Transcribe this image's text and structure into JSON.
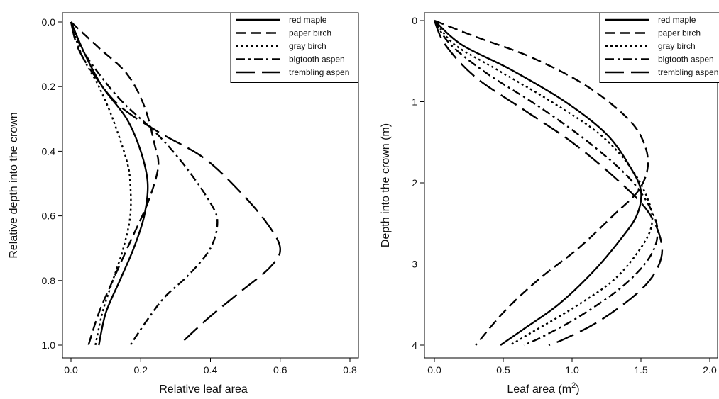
{
  "chart_data": [
    {
      "type": "line",
      "xlabel": "Relative leaf area",
      "ylabel": "Relative depth into the crown",
      "xlim": [
        0,
        0.8
      ],
      "ylim": [
        0,
        1.0
      ],
      "y_inverted": true,
      "xticks": [
        "0.0",
        "0.2",
        "0.4",
        "0.6",
        "0.8"
      ],
      "yticks": [
        "0.0",
        "0.2",
        "0.4",
        "0.6",
        "0.8",
        "1.0"
      ],
      "legend_position": "top-right",
      "series": [
        {
          "name": "red maple",
          "dash": "solid",
          "points": [
            [
              0,
              0
            ],
            [
              0.04,
              0.1
            ],
            [
              0.09,
              0.2
            ],
            [
              0.16,
              0.3
            ],
            [
              0.2,
              0.4
            ],
            [
              0.22,
              0.5
            ],
            [
              0.21,
              0.6
            ],
            [
              0.18,
              0.7
            ],
            [
              0.14,
              0.8
            ],
            [
              0.1,
              0.9
            ],
            [
              0.08,
              1.0
            ]
          ]
        },
        {
          "name": "paper birch",
          "dash": "dash",
          "points": [
            [
              0,
              0
            ],
            [
              0.08,
              0.08
            ],
            [
              0.16,
              0.16
            ],
            [
              0.21,
              0.26
            ],
            [
              0.24,
              0.38
            ],
            [
              0.25,
              0.45
            ],
            [
              0.22,
              0.56
            ],
            [
              0.17,
              0.68
            ],
            [
              0.12,
              0.8
            ],
            [
              0.08,
              0.9
            ],
            [
              0.05,
              1.0
            ]
          ]
        },
        {
          "name": "gray birch",
          "dash": "dot",
          "points": [
            [
              0,
              0
            ],
            [
              0.03,
              0.1
            ],
            [
              0.08,
              0.2
            ],
            [
              0.12,
              0.3
            ],
            [
              0.16,
              0.43
            ],
            [
              0.17,
              0.5
            ],
            [
              0.17,
              0.6
            ],
            [
              0.15,
              0.7
            ],
            [
              0.12,
              0.8
            ],
            [
              0.09,
              0.9
            ],
            [
              0.07,
              1.0
            ]
          ]
        },
        {
          "name": "bigtooth aspen",
          "dash": "dashdot",
          "points": [
            [
              0,
              0
            ],
            [
              0.03,
              0.08
            ],
            [
              0.08,
              0.16
            ],
            [
              0.15,
              0.25
            ],
            [
              0.25,
              0.35
            ],
            [
              0.33,
              0.45
            ],
            [
              0.4,
              0.56
            ],
            [
              0.42,
              0.62
            ],
            [
              0.4,
              0.7
            ],
            [
              0.34,
              0.78
            ],
            [
              0.27,
              0.85
            ],
            [
              0.22,
              0.92
            ],
            [
              0.17,
              1.0
            ]
          ]
        },
        {
          "name": "trembling aspen",
          "dash": "longdash",
          "points": [
            [
              0,
              0
            ],
            [
              0.02,
              0.08
            ],
            [
              0.07,
              0.17
            ],
            [
              0.14,
              0.26
            ],
            [
              0.25,
              0.34
            ],
            [
              0.38,
              0.42
            ],
            [
              0.48,
              0.52
            ],
            [
              0.56,
              0.62
            ],
            [
              0.6,
              0.7
            ],
            [
              0.57,
              0.76
            ],
            [
              0.48,
              0.84
            ],
            [
              0.39,
              0.92
            ],
            [
              0.31,
              1.0
            ]
          ]
        }
      ]
    },
    {
      "type": "line",
      "xlabel": "Leaf area (m",
      "xlabel_superscript": "2",
      "xlabel_suffix": ")",
      "ylabel": "Depth into the crown (m)",
      "xlim": [
        0,
        2.0
      ],
      "ylim": [
        0,
        4
      ],
      "y_inverted": true,
      "xticks": [
        "0.0",
        "0.5",
        "1.0",
        "1.5",
        "2.0"
      ],
      "yticks": [
        "0",
        "1",
        "2",
        "3",
        "4"
      ],
      "legend_position": "top-right",
      "series": [
        {
          "name": "red maple",
          "dash": "solid",
          "points": [
            [
              0,
              0
            ],
            [
              0.2,
              0.3
            ],
            [
              0.55,
              0.6
            ],
            [
              0.95,
              1.0
            ],
            [
              1.25,
              1.4
            ],
            [
              1.42,
              1.8
            ],
            [
              1.5,
              2.1
            ],
            [
              1.47,
              2.4
            ],
            [
              1.35,
              2.7
            ],
            [
              1.15,
              3.1
            ],
            [
              0.9,
              3.5
            ],
            [
              0.65,
              3.8
            ],
            [
              0.48,
              4.0
            ]
          ]
        },
        {
          "name": "paper birch",
          "dash": "dash",
          "points": [
            [
              0,
              0
            ],
            [
              0.3,
              0.2
            ],
            [
              0.7,
              0.45
            ],
            [
              1.1,
              0.8
            ],
            [
              1.4,
              1.2
            ],
            [
              1.52,
              1.5
            ],
            [
              1.55,
              1.8
            ],
            [
              1.48,
              2.1
            ],
            [
              1.3,
              2.4
            ],
            [
              1.05,
              2.8
            ],
            [
              0.75,
              3.2
            ],
            [
              0.5,
              3.6
            ],
            [
              0.3,
              4.0
            ]
          ]
        },
        {
          "name": "gray birch",
          "dash": "dot",
          "points": [
            [
              0,
              0
            ],
            [
              0.15,
              0.3
            ],
            [
              0.45,
              0.6
            ],
            [
              0.85,
              1.0
            ],
            [
              1.2,
              1.4
            ],
            [
              1.42,
              1.8
            ],
            [
              1.55,
              2.2
            ],
            [
              1.58,
              2.5
            ],
            [
              1.5,
              2.8
            ],
            [
              1.3,
              3.2
            ],
            [
              1.0,
              3.55
            ],
            [
              0.7,
              3.85
            ],
            [
              0.55,
              4.0
            ]
          ]
        },
        {
          "name": "bigtooth aspen",
          "dash": "dashdot",
          "points": [
            [
              0,
              0
            ],
            [
              0.12,
              0.3
            ],
            [
              0.38,
              0.65
            ],
            [
              0.75,
              1.05
            ],
            [
              1.12,
              1.5
            ],
            [
              1.42,
              1.95
            ],
            [
              1.58,
              2.35
            ],
            [
              1.62,
              2.65
            ],
            [
              1.55,
              2.95
            ],
            [
              1.35,
              3.3
            ],
            [
              1.05,
              3.65
            ],
            [
              0.78,
              3.9
            ],
            [
              0.65,
              4.0
            ]
          ]
        },
        {
          "name": "trembling aspen",
          "dash": "longdash",
          "points": [
            [
              0,
              0
            ],
            [
              0.08,
              0.3
            ],
            [
              0.3,
              0.7
            ],
            [
              0.65,
              1.1
            ],
            [
              1.0,
              1.5
            ],
            [
              1.32,
              1.95
            ],
            [
              1.55,
              2.35
            ],
            [
              1.65,
              2.75
            ],
            [
              1.62,
              3.05
            ],
            [
              1.48,
              3.35
            ],
            [
              1.2,
              3.7
            ],
            [
              0.95,
              3.92
            ],
            [
              0.83,
              4.0
            ]
          ]
        }
      ]
    }
  ]
}
